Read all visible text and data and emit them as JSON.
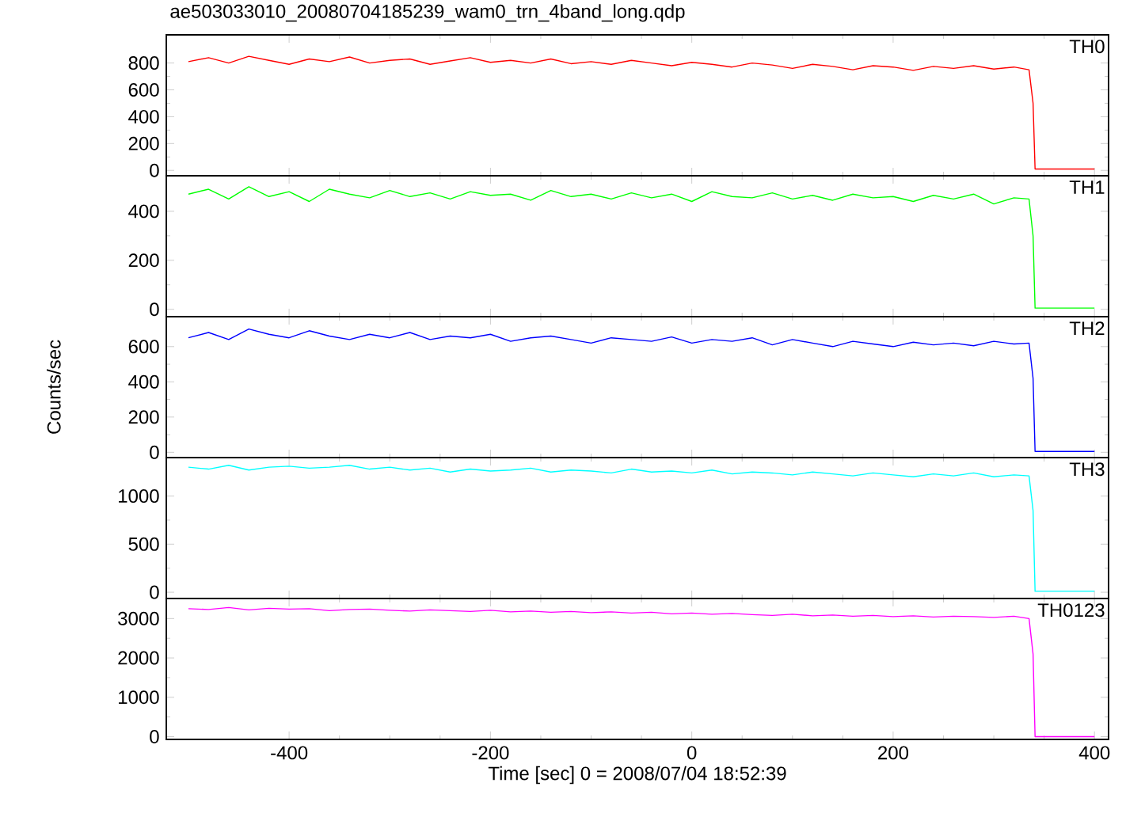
{
  "chart_data": [
    {
      "type": "line",
      "title": "ae503033010_20080704185239_wam0_trn_4band_long.qdp",
      "tick_labels": "y",
      "xlim": [
        -522,
        414
      ],
      "xticks": [
        -400,
        -200,
        0,
        200,
        400
      ],
      "ylim": [
        -40,
        1010
      ],
      "yticks": [
        0,
        200,
        400,
        600,
        800
      ],
      "x": [
        -500,
        -480,
        -460,
        -440,
        -420,
        -400,
        -380,
        -360,
        -340,
        -320,
        -300,
        -280,
        -260,
        -240,
        -220,
        -200,
        -180,
        -160,
        -140,
        -120,
        -100,
        -80,
        -60,
        -40,
        -20,
        0,
        20,
        40,
        60,
        80,
        100,
        120,
        140,
        160,
        180,
        200,
        220,
        240,
        260,
        280,
        300,
        320,
        335,
        339,
        341,
        400
      ],
      "series": [
        {
          "name": "TH0",
          "color": "#ff0000",
          "values": [
            810,
            840,
            800,
            850,
            820,
            790,
            830,
            810,
            845,
            800,
            820,
            830,
            790,
            815,
            840,
            805,
            820,
            800,
            830,
            795,
            810,
            790,
            820,
            800,
            780,
            805,
            790,
            770,
            800,
            785,
            760,
            790,
            775,
            750,
            780,
            770,
            745,
            775,
            760,
            780,
            755,
            770,
            750,
            500,
            10,
            10
          ]
        }
      ]
    },
    {
      "type": "line",
      "tick_labels": "y",
      "xlim": [
        -522,
        414
      ],
      "xticks": [
        -400,
        -200,
        0,
        200,
        400
      ],
      "ylim": [
        -30,
        545
      ],
      "yticks": [
        0,
        200,
        400
      ],
      "x": [
        -500,
        -480,
        -460,
        -440,
        -420,
        -400,
        -380,
        -360,
        -340,
        -320,
        -300,
        -280,
        -260,
        -240,
        -220,
        -200,
        -180,
        -160,
        -140,
        -120,
        -100,
        -80,
        -60,
        -40,
        -20,
        0,
        20,
        40,
        60,
        80,
        100,
        120,
        140,
        160,
        180,
        200,
        220,
        240,
        260,
        280,
        300,
        320,
        335,
        339,
        341,
        400
      ],
      "series": [
        {
          "name": "TH1",
          "color": "#00ff00",
          "values": [
            470,
            490,
            450,
            500,
            460,
            480,
            440,
            490,
            470,
            455,
            485,
            460,
            475,
            450,
            480,
            465,
            470,
            445,
            485,
            460,
            470,
            450,
            475,
            455,
            470,
            440,
            480,
            460,
            455,
            475,
            450,
            465,
            445,
            470,
            455,
            460,
            440,
            465,
            450,
            470,
            430,
            455,
            450,
            300,
            5,
            5
          ]
        }
      ]
    },
    {
      "type": "line",
      "ylabel": "Counts/sec",
      "tick_labels": "y",
      "xlim": [
        -522,
        414
      ],
      "xticks": [
        -400,
        -200,
        0,
        200,
        400
      ],
      "ylim": [
        -30,
        770
      ],
      "yticks": [
        0,
        200,
        400,
        600
      ],
      "x": [
        -500,
        -480,
        -460,
        -440,
        -420,
        -400,
        -380,
        -360,
        -340,
        -320,
        -300,
        -280,
        -260,
        -240,
        -220,
        -200,
        -180,
        -160,
        -140,
        -120,
        -100,
        -80,
        -60,
        -40,
        -20,
        0,
        20,
        40,
        60,
        80,
        100,
        120,
        140,
        160,
        180,
        200,
        220,
        240,
        260,
        280,
        300,
        320,
        335,
        339,
        341,
        400
      ],
      "series": [
        {
          "name": "TH2",
          "color": "#0000ff",
          "values": [
            650,
            680,
            640,
            700,
            670,
            650,
            690,
            660,
            640,
            670,
            650,
            680,
            640,
            660,
            650,
            670,
            630,
            650,
            660,
            640,
            620,
            650,
            640,
            630,
            655,
            620,
            640,
            630,
            650,
            610,
            640,
            620,
            600,
            630,
            615,
            600,
            625,
            610,
            620,
            605,
            630,
            615,
            620,
            420,
            5,
            5
          ]
        }
      ]
    },
    {
      "type": "line",
      "tick_labels": "y",
      "xlim": [
        -522,
        414
      ],
      "xticks": [
        -400,
        -200,
        0,
        200,
        400
      ],
      "ylim": [
        -65,
        1400
      ],
      "yticks": [
        0,
        500,
        1000
      ],
      "x": [
        -500,
        -480,
        -460,
        -440,
        -420,
        -400,
        -380,
        -360,
        -340,
        -320,
        -300,
        -280,
        -260,
        -240,
        -220,
        -200,
        -180,
        -160,
        -140,
        -120,
        -100,
        -80,
        -60,
        -40,
        -20,
        0,
        20,
        40,
        60,
        80,
        100,
        120,
        140,
        160,
        180,
        200,
        220,
        240,
        260,
        280,
        300,
        320,
        335,
        339,
        341,
        400
      ],
      "series": [
        {
          "name": "TH3",
          "color": "#00ffff",
          "values": [
            1300,
            1280,
            1320,
            1270,
            1300,
            1310,
            1290,
            1300,
            1320,
            1280,
            1300,
            1270,
            1290,
            1250,
            1280,
            1260,
            1270,
            1290,
            1250,
            1270,
            1260,
            1240,
            1280,
            1250,
            1260,
            1240,
            1270,
            1230,
            1250,
            1240,
            1220,
            1250,
            1230,
            1210,
            1240,
            1220,
            1200,
            1230,
            1210,
            1240,
            1200,
            1220,
            1210,
            850,
            10,
            10
          ]
        }
      ]
    },
    {
      "type": "line",
      "xlabel": "Time [sec] 0 = 2008/07/04 18:52:39",
      "xlim": [
        -522,
        414
      ],
      "xticks": [
        -400,
        -200,
        0,
        200,
        400
      ],
      "ylim": [
        -70,
        3510
      ],
      "yticks": [
        0,
        1000,
        2000,
        3000
      ],
      "x": [
        -500,
        -480,
        -460,
        -440,
        -420,
        -400,
        -380,
        -360,
        -340,
        -320,
        -300,
        -280,
        -260,
        -240,
        -220,
        -200,
        -180,
        -160,
        -140,
        -120,
        -100,
        -80,
        -60,
        -40,
        -20,
        0,
        20,
        40,
        60,
        80,
        100,
        120,
        140,
        160,
        180,
        200,
        220,
        240,
        260,
        280,
        300,
        320,
        335,
        339,
        341,
        400
      ],
      "series": [
        {
          "name": "TH0123",
          "color": "#ff00ff",
          "values": [
            3250,
            3230,
            3280,
            3220,
            3260,
            3240,
            3250,
            3200,
            3230,
            3240,
            3210,
            3190,
            3220,
            3200,
            3180,
            3210,
            3170,
            3190,
            3160,
            3180,
            3150,
            3170,
            3140,
            3160,
            3120,
            3140,
            3110,
            3130,
            3100,
            3080,
            3110,
            3070,
            3090,
            3060,
            3080,
            3050,
            3070,
            3040,
            3060,
            3050,
            3030,
            3060,
            3000,
            2100,
            0,
            0
          ]
        }
      ]
    }
  ]
}
